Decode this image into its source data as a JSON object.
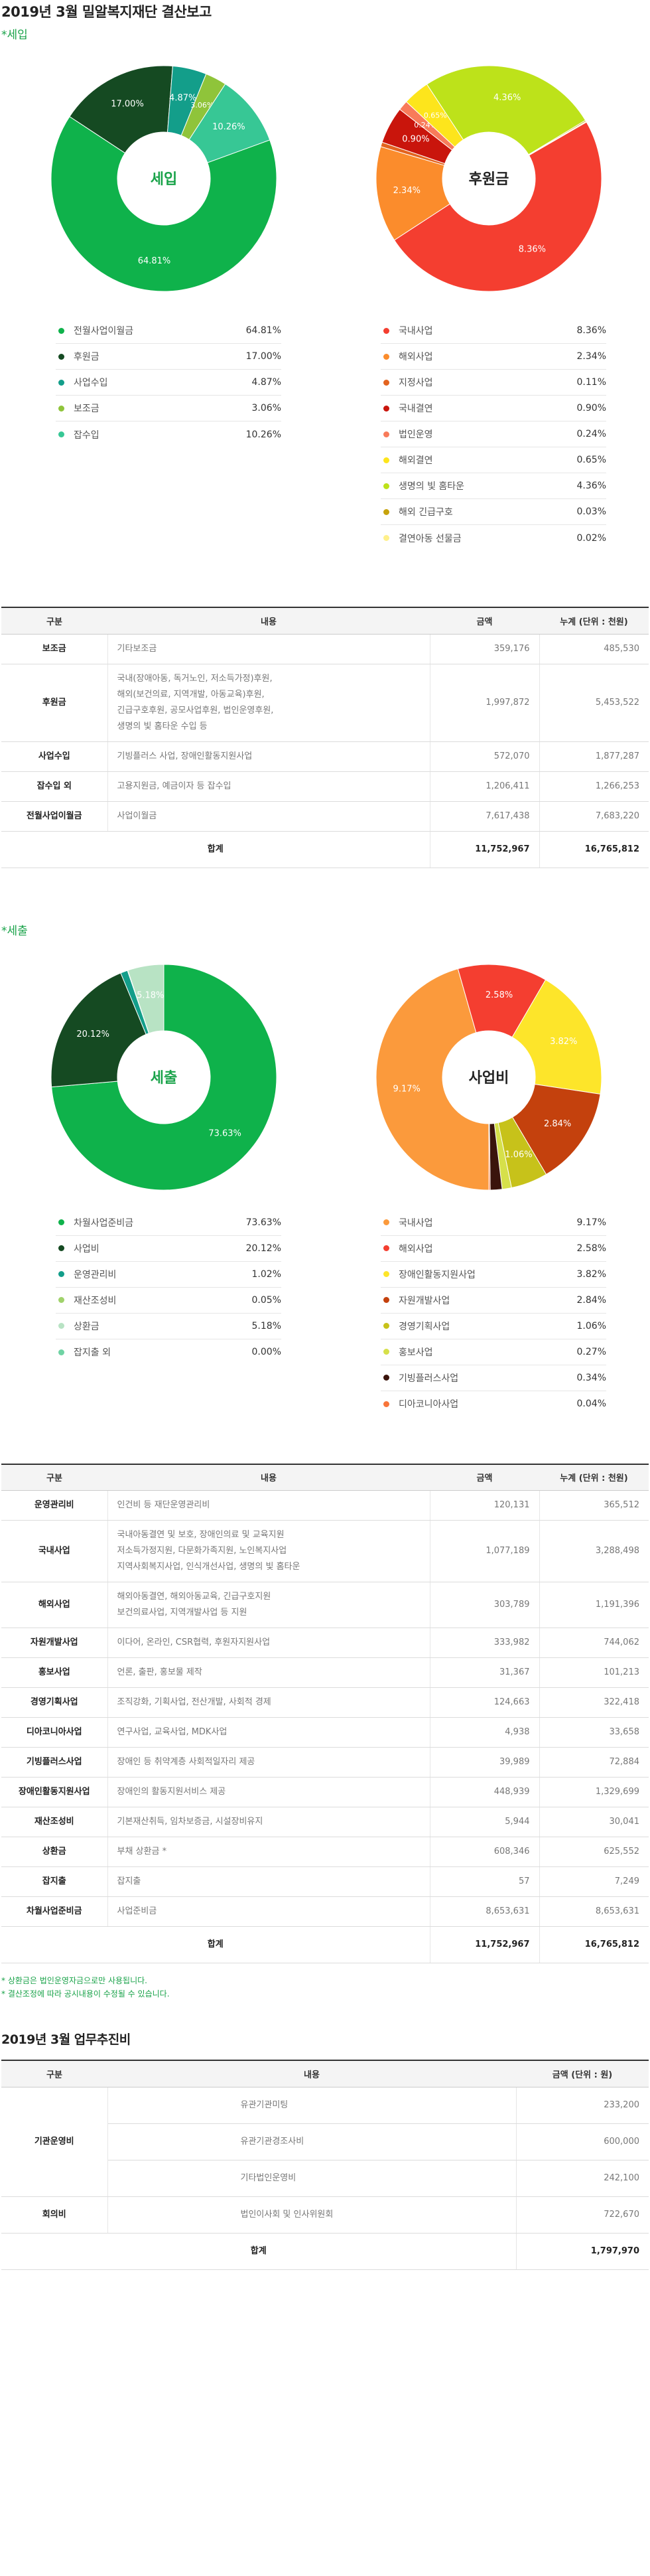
{
  "page_title": "2019년 3월 밀알복지재단 결산보고",
  "income": {
    "subtitle": "*세입",
    "chart_data": [
      {
        "type": "pie",
        "center_label": "세입",
        "categories": [
          "전월사업이월금",
          "후원금",
          "사업수입",
          "보조금",
          "잡수입"
        ],
        "values": [
          64.81,
          17.0,
          4.87,
          3.06,
          10.26
        ],
        "colors": [
          "#0fb24b",
          "#154a22",
          "#139e8a",
          "#8fc43a",
          "#37c795"
        ],
        "data_labels": [
          "64.81%",
          "17.00%",
          "4.87%",
          "3.06%",
          "10.26%"
        ],
        "unit": "%"
      },
      {
        "type": "pie",
        "center_label": "후원금",
        "categories": [
          "국내사업",
          "해외사업",
          "지정사업",
          "국내결연",
          "법인운영",
          "해외결연",
          "생명의 빛 홈타운",
          "해외 긴급구호",
          "결연아동 선물금"
        ],
        "values": [
          8.36,
          2.34,
          0.11,
          0.9,
          0.24,
          0.65,
          4.36,
          0.03,
          0.02
        ],
        "colors": [
          "#f43e30",
          "#fb8c2c",
          "#e3641f",
          "#c9150c",
          "#f87b5a",
          "#fde51c",
          "#bde21a",
          "#c7a30c",
          "#fff08a"
        ],
        "data_labels": [
          "8.36%",
          "2.34%",
          "",
          "0.90%",
          "0.24%",
          "0.65%",
          "4.36%",
          "",
          ""
        ],
        "unit": "%"
      }
    ]
  },
  "income_legend_left": [
    {
      "label": "전월사업이월금",
      "value": "64.81%",
      "color": "#0fb24b"
    },
    {
      "label": "후원금",
      "value": "17.00%",
      "color": "#154a22"
    },
    {
      "label": "사업수입",
      "value": "4.87%",
      "color": "#139e8a"
    },
    {
      "label": "보조금",
      "value": "3.06%",
      "color": "#8fc43a"
    },
    {
      "label": "잡수입",
      "value": "10.26%",
      "color": "#37c795"
    }
  ],
  "income_legend_right": [
    {
      "label": "국내사업",
      "value": "8.36%",
      "color": "#f43e30"
    },
    {
      "label": "해외사업",
      "value": "2.34%",
      "color": "#fb8c2c"
    },
    {
      "label": "지정사업",
      "value": "0.11%",
      "color": "#e3641f"
    },
    {
      "label": "국내결연",
      "value": "0.90%",
      "color": "#c9150c"
    },
    {
      "label": "법인운영",
      "value": "0.24%",
      "color": "#f87b5a"
    },
    {
      "label": "해외결연",
      "value": "0.65%",
      "color": "#fde51c"
    },
    {
      "label": "생명의 빛 홈타운",
      "value": "4.36%",
      "color": "#bde21a"
    },
    {
      "label": "해외 긴급구호",
      "value": "0.03%",
      "color": "#c7a30c"
    },
    {
      "label": "결연아동 선물금",
      "value": "0.02%",
      "color": "#fff08a"
    }
  ],
  "table_header": {
    "cat": "구분",
    "desc": "내용",
    "amount": "금액",
    "cumulative": "누계 (단위 : 천원)"
  },
  "income_table": {
    "rows": [
      {
        "cat": "보조금",
        "desc": [
          "기타보조금"
        ],
        "amount": "359,176",
        "cumulative": "485,530"
      },
      {
        "cat": "후원금",
        "desc": [
          "국내(장애아동, 독거노인, 저소득가정)후원,",
          "해외(보건의료, 지역개발, 아동교육)후원,",
          "긴급구호후원, 공모사업후원, 법인운영후원,",
          "생명의 빛 홈타운 수입 등"
        ],
        "amount": "1,997,872",
        "cumulative": "5,453,522"
      },
      {
        "cat": "사업수입",
        "desc": [
          "기빙플러스 사업, 장애인활동지원사업"
        ],
        "amount": "572,070",
        "cumulative": "1,877,287"
      },
      {
        "cat": "잡수입 외",
        "desc": [
          "고용지원금, 예금이자 등 잡수입"
        ],
        "amount": "1,206,411",
        "cumulative": "1,266,253"
      },
      {
        "cat": "전월사업이월금",
        "desc": [
          "사업이월금"
        ],
        "amount": "7,617,438",
        "cumulative": "7,683,220"
      }
    ],
    "total": {
      "label": "합계",
      "amount": "11,752,967",
      "cumulative": "16,765,812"
    }
  },
  "expense": {
    "subtitle": "*세출",
    "chart_data": [
      {
        "type": "pie",
        "center_label": "세출",
        "categories": [
          "차월사업준비금",
          "사업비",
          "운영관리비",
          "재산조성비",
          "상환금",
          "잡지출 외"
        ],
        "values": [
          73.63,
          20.12,
          1.02,
          0.05,
          5.18,
          0.0
        ],
        "colors": [
          "#0fb24b",
          "#154a22",
          "#139e8a",
          "#a0d26b",
          "#b8e3c4",
          "#6fd3a4"
        ],
        "data_labels": [
          "73.63%",
          "20.12%",
          "",
          "",
          "5.18%",
          ""
        ],
        "unit": "%"
      },
      {
        "type": "pie",
        "center_label": "사업비",
        "categories": [
          "국내사업",
          "해외사업",
          "장애인활동지원사업",
          "자원개발사업",
          "경영기획사업",
          "홍보사업",
          "기빙플러스사업",
          "디아코니아사업"
        ],
        "values": [
          9.17,
          2.58,
          3.82,
          2.84,
          1.06,
          0.27,
          0.34,
          0.04
        ],
        "colors": [
          "#fb9a3c",
          "#f43e30",
          "#fde52a",
          "#c4410d",
          "#c7c21a",
          "#d6e04a",
          "#3a140c",
          "#f8753a"
        ],
        "data_labels": [
          "9.17%",
          "2.58%",
          "3.82%",
          "2.84%",
          "1.06%",
          "",
          "",
          ""
        ],
        "unit": "%"
      }
    ]
  },
  "expense_legend_left": [
    {
      "label": "차월사업준비금",
      "value": "73.63%",
      "color": "#0fb24b"
    },
    {
      "label": "사업비",
      "value": "20.12%",
      "color": "#154a22"
    },
    {
      "label": "운영관리비",
      "value": "1.02%",
      "color": "#139e8a"
    },
    {
      "label": "재산조성비",
      "value": "0.05%",
      "color": "#a0d26b"
    },
    {
      "label": "상환금",
      "value": "5.18%",
      "color": "#b8e3c4"
    },
    {
      "label": "잡지출 외",
      "value": "0.00%",
      "color": "#6fd3a4"
    }
  ],
  "expense_legend_right": [
    {
      "label": "국내사업",
      "value": "9.17%",
      "color": "#fb9a3c"
    },
    {
      "label": "해외사업",
      "value": "2.58%",
      "color": "#f43e30"
    },
    {
      "label": "장애인활동지원사업",
      "value": "3.82%",
      "color": "#fde52a"
    },
    {
      "label": "자원개발사업",
      "value": "2.84%",
      "color": "#c4410d"
    },
    {
      "label": "경영기획사업",
      "value": "1.06%",
      "color": "#c7c21a"
    },
    {
      "label": "홍보사업",
      "value": "0.27%",
      "color": "#d6e04a"
    },
    {
      "label": "기빙플러스사업",
      "value": "0.34%",
      "color": "#3a140c"
    },
    {
      "label": "디아코니아사업",
      "value": "0.04%",
      "color": "#f8753a"
    }
  ],
  "expense_table": {
    "rows": [
      {
        "cat": "운영관리비",
        "desc": [
          "인건비 등 재단운영관리비"
        ],
        "amount": "120,131",
        "cumulative": "365,512"
      },
      {
        "cat": "국내사업",
        "desc": [
          "국내아동결연 및 보호, 장애인의료 및 교육지원",
          "저소득가정지원, 다문화가족지원, 노인복지사업",
          "지역사회복지사업, 인식개선사업, 생명의 빛 홈타운"
        ],
        "amount": "1,077,189",
        "cumulative": "3,288,498"
      },
      {
        "cat": "해외사업",
        "desc": [
          "해외아동결연, 해외아동교육, 긴급구호지원",
          "보건의료사업, 지역개발사업 등 지원"
        ],
        "amount": "303,789",
        "cumulative": "1,191,396"
      },
      {
        "cat": "자원개발사업",
        "desc": [
          "이다어, 온라인, CSR협력, 후원자지원사업"
        ],
        "amount": "333,982",
        "cumulative": "744,062"
      },
      {
        "cat": "홍보사업",
        "desc": [
          "언론, 출판, 홍보물 제작"
        ],
        "amount": "31,367",
        "cumulative": "101,213"
      },
      {
        "cat": "경영기획사업",
        "desc": [
          "조직강화, 기획사업, 전산개발, 사회적 경제"
        ],
        "amount": "124,663",
        "cumulative": "322,418"
      },
      {
        "cat": "디아코니아사업",
        "desc": [
          "연구사업, 교육사업, MDK사업"
        ],
        "amount": "4,938",
        "cumulative": "33,658"
      },
      {
        "cat": "기빙플러스사업",
        "desc": [
          "장애인 등 취약계층 사회적일자리 제공"
        ],
        "amount": "39,989",
        "cumulative": "72,884"
      },
      {
        "cat": "장애인활동지원사업",
        "desc": [
          "장애인의 활동지원서비스 제공"
        ],
        "amount": "448,939",
        "cumulative": "1,329,699"
      },
      {
        "cat": "재산조성비",
        "desc": [
          "기본재산취득, 임차보증금, 시설장비유지"
        ],
        "amount": "5,944",
        "cumulative": "30,041"
      },
      {
        "cat": "상환금",
        "desc": [
          "부채 상환금 *"
        ],
        "amount": "608,346",
        "cumulative": "625,552"
      },
      {
        "cat": "잡지출",
        "desc": [
          "잡지출"
        ],
        "amount": "57",
        "cumulative": "7,249"
      },
      {
        "cat": "차월사업준비금",
        "desc": [
          "사업준비금"
        ],
        "amount": "8,653,631",
        "cumulative": "8,653,631"
      }
    ],
    "total": {
      "label": "합계",
      "amount": "11,752,967",
      "cumulative": "16,765,812"
    }
  },
  "notes": [
    "* 상환금은 법인운영자금으로만 사용됩니다.",
    "* 결산조정에 따라 공시내용이 수정될 수 있습니다."
  ],
  "ops": {
    "title": "2019년 3월 업무추진비",
    "header": {
      "cat": "구분",
      "desc": "내용",
      "amount": "금액 (단위 : 원)"
    },
    "groups": [
      {
        "cat": "기관운영비",
        "rows": [
          {
            "desc": "유관기관미팅",
            "amount": "233,200"
          },
          {
            "desc": "유관기관경조사비",
            "amount": "600,000"
          },
          {
            "desc": "기타법인운영비",
            "amount": "242,100"
          }
        ]
      },
      {
        "cat": "회의비",
        "rows": [
          {
            "desc": "법인이사회 및 인사위원회",
            "amount": "722,670"
          }
        ]
      }
    ],
    "total": {
      "label": "합계",
      "amount": "1,797,970"
    }
  }
}
